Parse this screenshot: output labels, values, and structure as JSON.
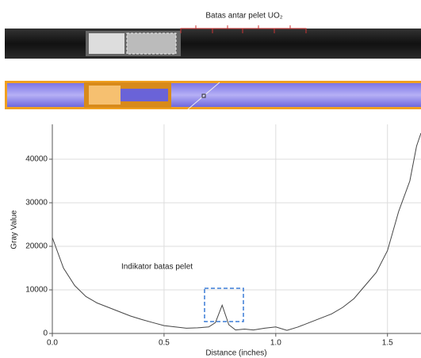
{
  "chart_data": {
    "type": "line",
    "annotations": [
      "Batas antar pelet UO₂",
      "Indikator batas pelet"
    ],
    "x_label": "Distance (inches)",
    "y_label": "Gray Value",
    "x": [
      0,
      0.05,
      0.1,
      0.15,
      0.2,
      0.25,
      0.3,
      0.35,
      0.4,
      0.45,
      0.5,
      0.55,
      0.6,
      0.65,
      0.7,
      0.73,
      0.76,
      0.79,
      0.82,
      0.86,
      0.9,
      0.95,
      1.0,
      1.05,
      1.1,
      1.15,
      1.2,
      1.25,
      1.3,
      1.35,
      1.4,
      1.45,
      1.5,
      1.55,
      1.6,
      1.63,
      1.65
    ],
    "values": [
      22000,
      15000,
      11000,
      8500,
      7000,
      6000,
      5000,
      4000,
      3200,
      2500,
      1800,
      1500,
      1200,
      1300,
      1500,
      2500,
      6500,
      2000,
      800,
      1000,
      800,
      1200,
      1500,
      700,
      1500,
      2500,
      3500,
      4500,
      6000,
      8000,
      11000,
      14000,
      19000,
      28000,
      35000,
      43000,
      46000
    ],
    "color": "#444444",
    "xlim": [
      0,
      1.65
    ],
    "ylim": [
      0,
      48000
    ],
    "xticks": [
      {
        "value": 0,
        "label": "0.0"
      },
      0.5,
      {
        "value": 1,
        "label": "1.0"
      },
      1.5
    ],
    "yticks": [
      0,
      10000,
      20000,
      30000,
      40000
    ],
    "grid": true
  }
}
